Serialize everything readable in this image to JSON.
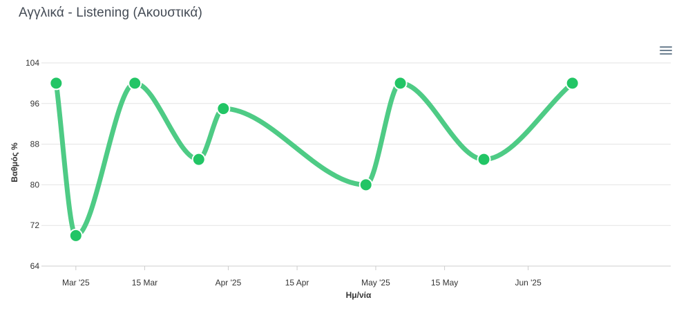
{
  "title": "Αγγλικά - Listening (Ακουστικά)",
  "menu_icon": "hamburger-menu-icon",
  "colors": {
    "line": "#4ecb85",
    "point": "#22c565",
    "grid": "#e3e3e3",
    "axis_text": "#333333",
    "title": "#444b55"
  },
  "chart_data": {
    "type": "line",
    "curve": "smooth",
    "xlabel": "Ημ/νία",
    "ylabel": "Βαθμός %",
    "ylim": [
      64,
      104
    ],
    "yticks": [
      "64",
      "72",
      "80",
      "88",
      "96",
      "104"
    ],
    "xlim": [
      "2025-02-22",
      "2025-06-30"
    ],
    "xticks": [
      {
        "date": "2025-03-01",
        "label": "Mar '25"
      },
      {
        "date": "2025-03-15",
        "label": "15 Mar"
      },
      {
        "date": "2025-04-01",
        "label": "Apr '25"
      },
      {
        "date": "2025-04-15",
        "label": "15 Apr"
      },
      {
        "date": "2025-05-01",
        "label": "May '25"
      },
      {
        "date": "2025-05-15",
        "label": "15 May"
      },
      {
        "date": "2025-06-01",
        "label": "Jun '25"
      }
    ],
    "grid": true,
    "legend": "none",
    "series": [
      {
        "points": [
          {
            "x": "2025-02-25",
            "y": 100
          },
          {
            "x": "2025-03-01",
            "y": 70
          },
          {
            "x": "2025-03-13",
            "y": 100
          },
          {
            "x": "2025-03-26",
            "y": 85
          },
          {
            "x": "2025-03-31",
            "y": 95
          },
          {
            "x": "2025-04-29",
            "y": 80
          },
          {
            "x": "2025-05-06",
            "y": 100
          },
          {
            "x": "2025-05-23",
            "y": 85
          },
          {
            "x": "2025-06-10",
            "y": 100
          }
        ]
      }
    ]
  }
}
